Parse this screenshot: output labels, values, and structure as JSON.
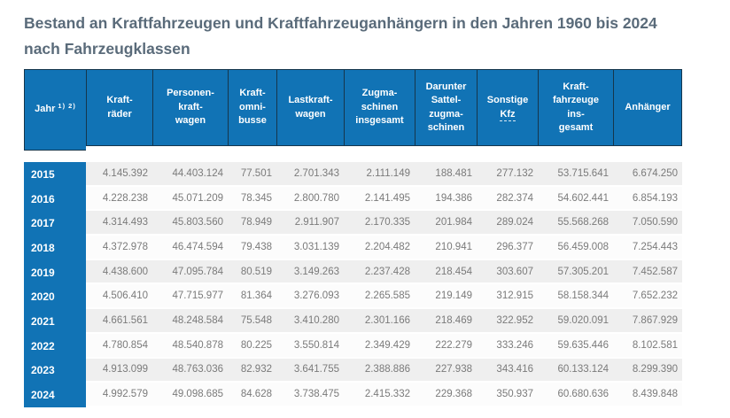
{
  "page": {
    "title": "Bestand an Kraftfahrzeugen und Kraftfahrzeuganhängern in den Jahren 1960 bis 2024 nach Fahrzeugklassen"
  },
  "colors": {
    "header_blue": "#1173b5",
    "header_border": "#16364c",
    "title_text": "#5a6b7a",
    "cell_text": "#7a7a7a",
    "row_odd": "#efefef",
    "row_even": "#fcfcfc"
  },
  "table": {
    "columns": [
      {
        "id": "jahr",
        "label": "Jahr",
        "footnote": "1) 2)"
      },
      {
        "id": "kraftraeder",
        "label": "Kraft-\nräder"
      },
      {
        "id": "personenkraftwagen",
        "label": "Personen-\nkraft-\nwagen"
      },
      {
        "id": "kraftomnibusse",
        "label": "Kraft-\nomni-\nbusse"
      },
      {
        "id": "lastkraftwagen",
        "label": "Lastkraft-\nwagen"
      },
      {
        "id": "zugmaschinen-insgesamt",
        "label": "Zugma-\nschinen\ninsgesamt"
      },
      {
        "id": "darunter-sattelzugmaschinen",
        "label": "Darunter\nSattel-\nzugma-\nschinen"
      },
      {
        "id": "sonstige-kfz",
        "label": "Sonstige",
        "abbr": "Kfz"
      },
      {
        "id": "kraftfahrzeuge-insgesamt",
        "label": "Kraft-\nfahrzeuge\nins-\ngesamt"
      },
      {
        "id": "anhaenger",
        "label": "Anhänger"
      }
    ],
    "rows": [
      {
        "year": "2015",
        "values": [
          "4.145.392",
          "44.403.124",
          "77.501",
          "2.701.343",
          "2.111.149",
          "188.481",
          "277.132",
          "53.715.641",
          "6.674.250"
        ]
      },
      {
        "year": "2016",
        "values": [
          "4.228.238",
          "45.071.209",
          "78.345",
          "2.800.780",
          "2.141.495",
          "194.386",
          "282.374",
          "54.602.441",
          "6.854.193"
        ]
      },
      {
        "year": "2017",
        "values": [
          "4.314.493",
          "45.803.560",
          "78.949",
          "2.911.907",
          "2.170.335",
          "201.984",
          "289.024",
          "55.568.268",
          "7.050.590"
        ]
      },
      {
        "year": "2018",
        "values": [
          "4.372.978",
          "46.474.594",
          "79.438",
          "3.031.139",
          "2.204.482",
          "210.941",
          "296.377",
          "56.459.008",
          "7.254.443"
        ]
      },
      {
        "year": "2019",
        "values": [
          "4.438.600",
          "47.095.784",
          "80.519",
          "3.149.263",
          "2.237.428",
          "218.454",
          "303.607",
          "57.305.201",
          "7.452.587"
        ]
      },
      {
        "year": "2020",
        "values": [
          "4.506.410",
          "47.715.977",
          "81.364",
          "3.276.093",
          "2.265.585",
          "219.149",
          "312.915",
          "58.158.344",
          "7.652.232"
        ]
      },
      {
        "year": "2021",
        "values": [
          "4.661.561",
          "48.248.584",
          "75.548",
          "3.410.280",
          "2.301.166",
          "218.469",
          "322.952",
          "59.020.091",
          "7.867.929"
        ]
      },
      {
        "year": "2022",
        "values": [
          "4.780.854",
          "48.540.878",
          "80.225",
          "3.550.814",
          "2.349.429",
          "222.279",
          "333.246",
          "59.635.446",
          "8.102.581"
        ]
      },
      {
        "year": "2023",
        "values": [
          "4.913.099",
          "48.763.036",
          "82.932",
          "3.641.755",
          "2.388.886",
          "227.938",
          "343.416",
          "60.133.124",
          "8.299.390"
        ]
      },
      {
        "year": "2024",
        "values": [
          "4.992.579",
          "49.098.685",
          "84.628",
          "3.738.475",
          "2.415.332",
          "229.368",
          "350.937",
          "60.680.636",
          "8.439.848"
        ]
      }
    ]
  },
  "chart_data": {
    "type": "table",
    "title": "Bestand an Kraftfahrzeugen und Kraftfahrzeuganhängern in den Jahren 1960 bis 2024 nach Fahrzeugklassen",
    "columns": [
      "Jahr",
      "Krafträder",
      "Personenkraftwagen",
      "Kraftomnibusse",
      "Lastkraftwagen",
      "Zugmaschinen insgesamt",
      "Darunter Sattelzugmaschinen",
      "Sonstige Kfz",
      "Kraftfahrzeuge insgesamt",
      "Anhänger"
    ],
    "rows": [
      [
        2015,
        4145392,
        44403124,
        77501,
        2701343,
        2111149,
        188481,
        277132,
        53715641,
        6674250
      ],
      [
        2016,
        4228238,
        45071209,
        78345,
        2800780,
        2141495,
        194386,
        282374,
        54602441,
        6854193
      ],
      [
        2017,
        4314493,
        45803560,
        78949,
        2911907,
        2170335,
        201984,
        289024,
        55568268,
        7050590
      ],
      [
        2018,
        4372978,
        46474594,
        79438,
        3031139,
        2204482,
        210941,
        296377,
        56459008,
        7254443
      ],
      [
        2019,
        4438600,
        47095784,
        80519,
        3149263,
        2237428,
        218454,
        303607,
        57305201,
        7452587
      ],
      [
        2020,
        4506410,
        47715977,
        81364,
        3276093,
        2265585,
        219149,
        312915,
        58158344,
        7652232
      ],
      [
        2021,
        4661561,
        48248584,
        75548,
        3410280,
        2301166,
        218469,
        322952,
        59020091,
        7867929
      ],
      [
        2022,
        4780854,
        48540878,
        80225,
        3550814,
        2349429,
        222279,
        333246,
        59635446,
        8102581
      ],
      [
        2023,
        4913099,
        48763036,
        82932,
        3641755,
        2388886,
        227938,
        343416,
        60133124,
        8299390
      ],
      [
        2024,
        4992579,
        49098685,
        84628,
        3738475,
        2415332,
        229368,
        350937,
        60680636,
        8439848
      ]
    ],
    "footnote_markers": "1) 2)",
    "number_format": "de-DE (dot thousands separator)"
  }
}
